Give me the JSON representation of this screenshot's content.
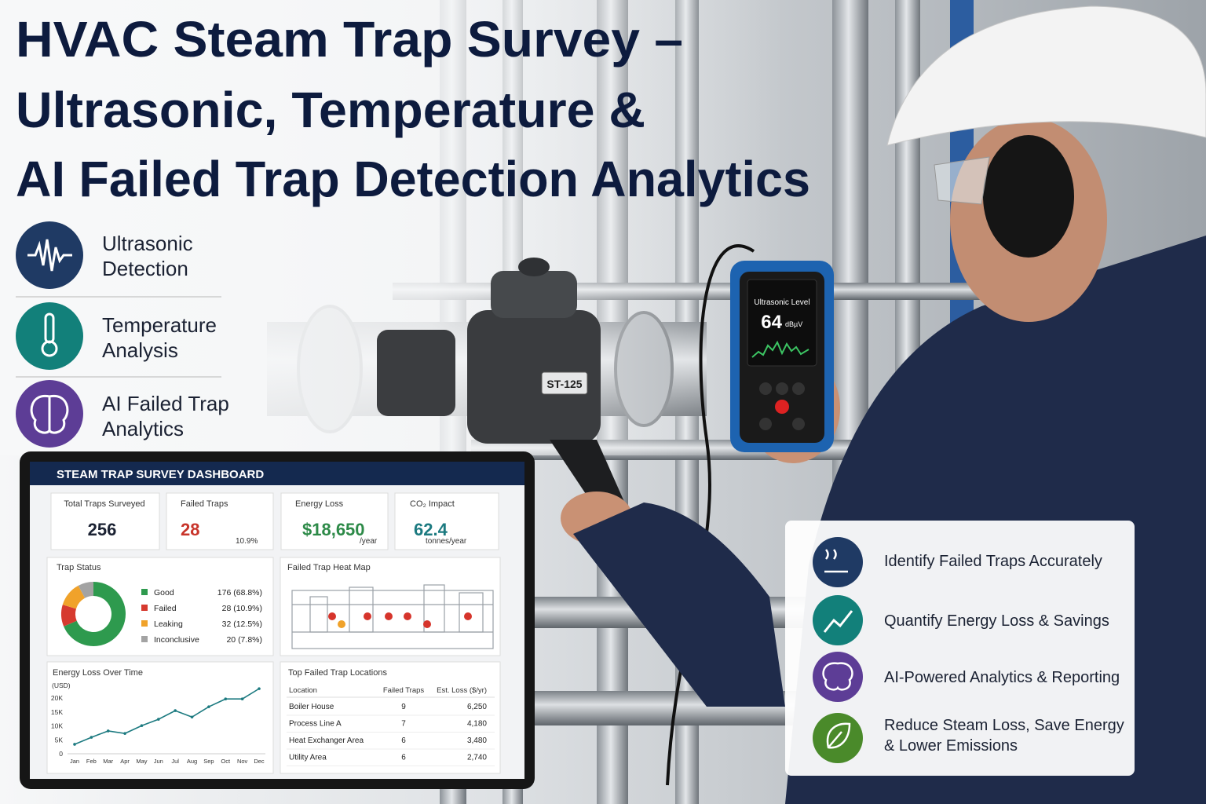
{
  "header": {
    "title_lines": [
      "HVAC Steam Trap Survey –",
      "Ultrasonic, Temperature &",
      "AI Failed Trap Detection Analytics"
    ]
  },
  "features": [
    {
      "lines": [
        "Ultrasonic",
        "Detection"
      ]
    },
    {
      "lines": [
        "Temperature",
        "Analysis"
      ]
    },
    {
      "lines": [
        "AI Failed Trap",
        "Analytics"
      ]
    }
  ],
  "scene": {
    "trap_tag": "ST-125",
    "device_label": "Ultrasonic Level",
    "device_value": "64",
    "device_unit": "dBµV"
  },
  "dashboard": {
    "title": "STEAM TRAP SURVEY DASHBOARD",
    "kpis": [
      {
        "label": "Total Traps Surveyed",
        "value": "256"
      },
      {
        "label": "Failed Traps",
        "value": "28",
        "note": "10.9%"
      },
      {
        "label": "Energy Loss",
        "value": "$18,650",
        "note": "/year"
      },
      {
        "label": "CO₂ Impact",
        "value": "62.4",
        "note": "tonnes/year"
      }
    ],
    "heat_map": {
      "title": "Failed Trap Heat Map"
    },
    "table": {
      "title": "Top Failed Trap Locations",
      "columns": [
        "Location",
        "Failed Traps",
        "Est. Loss ($/yr)"
      ],
      "rows": [
        [
          "Boiler House",
          9,
          "6,250"
        ],
        [
          "Process Line A",
          7,
          "4,180"
        ],
        [
          "Heat Exchanger Area",
          6,
          "3,480"
        ],
        [
          "Utility Area",
          6,
          "2,740"
        ]
      ]
    }
  },
  "chart_data": [
    {
      "type": "pie",
      "title": "Trap Status",
      "categories": [
        "Good",
        "Failed",
        "Leaking",
        "Inconclusive"
      ],
      "values": [
        176,
        28,
        32,
        20
      ],
      "value_labels": [
        "176 (68.8%)",
        "28 (10.9%)",
        "32 (12.5%)",
        "20 (7.8%)"
      ],
      "colors": [
        "#2e9a4e",
        "#d63a2f",
        "#f0a22a",
        "#a3a3a3"
      ]
    },
    {
      "type": "line",
      "title": "Energy Loss Over Time",
      "y_label": "(USD)",
      "categories": [
        "Jan",
        "Feb",
        "Mar",
        "Apr",
        "May",
        "Jun",
        "Jul",
        "Aug",
        "Sep",
        "Oct",
        "Nov",
        "Dec"
      ],
      "values": [
        3400,
        5900,
        8200,
        7300,
        10100,
        12400,
        15500,
        13200,
        16900,
        19700,
        19700,
        23400
      ],
      "color": "#1c7a80",
      "ylim": [
        0,
        24000
      ],
      "yticks": [
        {
          "value": 20000,
          "label": "20K"
        },
        {
          "value": 15000,
          "label": "15K"
        },
        {
          "value": 10000,
          "label": "10K"
        },
        {
          "value": 5000,
          "label": "5K"
        },
        0
      ],
      "grid": false
    }
  ],
  "benefits": [
    {
      "lines": [
        "Identify Failed Traps Accurately"
      ]
    },
    {
      "lines": [
        "Quantify Energy Loss & Savings"
      ]
    },
    {
      "lines": [
        "AI-Powered Analytics & Reporting"
      ]
    },
    {
      "lines": [
        "Reduce Steam Loss, Save Energy",
        "& Lower Emissions"
      ]
    }
  ]
}
